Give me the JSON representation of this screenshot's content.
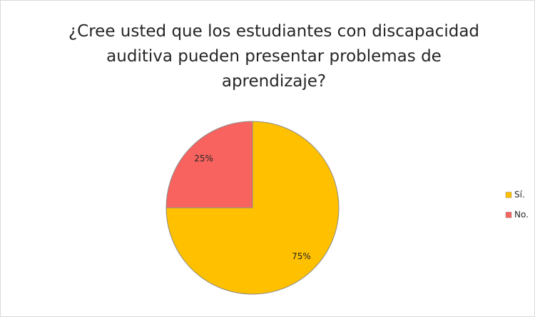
{
  "chart_data": {
    "type": "pie",
    "title": "¿Cree usted que los estudiantes con discapacidad auditiva pueden presentar problemas de aprendizaje?",
    "categories": [
      "Sí.",
      "No."
    ],
    "values": [
      75,
      25
    ],
    "value_labels": [
      "75%",
      "25%"
    ],
    "colors": [
      "#FFC000",
      "#F8635F"
    ],
    "legend": "right"
  }
}
